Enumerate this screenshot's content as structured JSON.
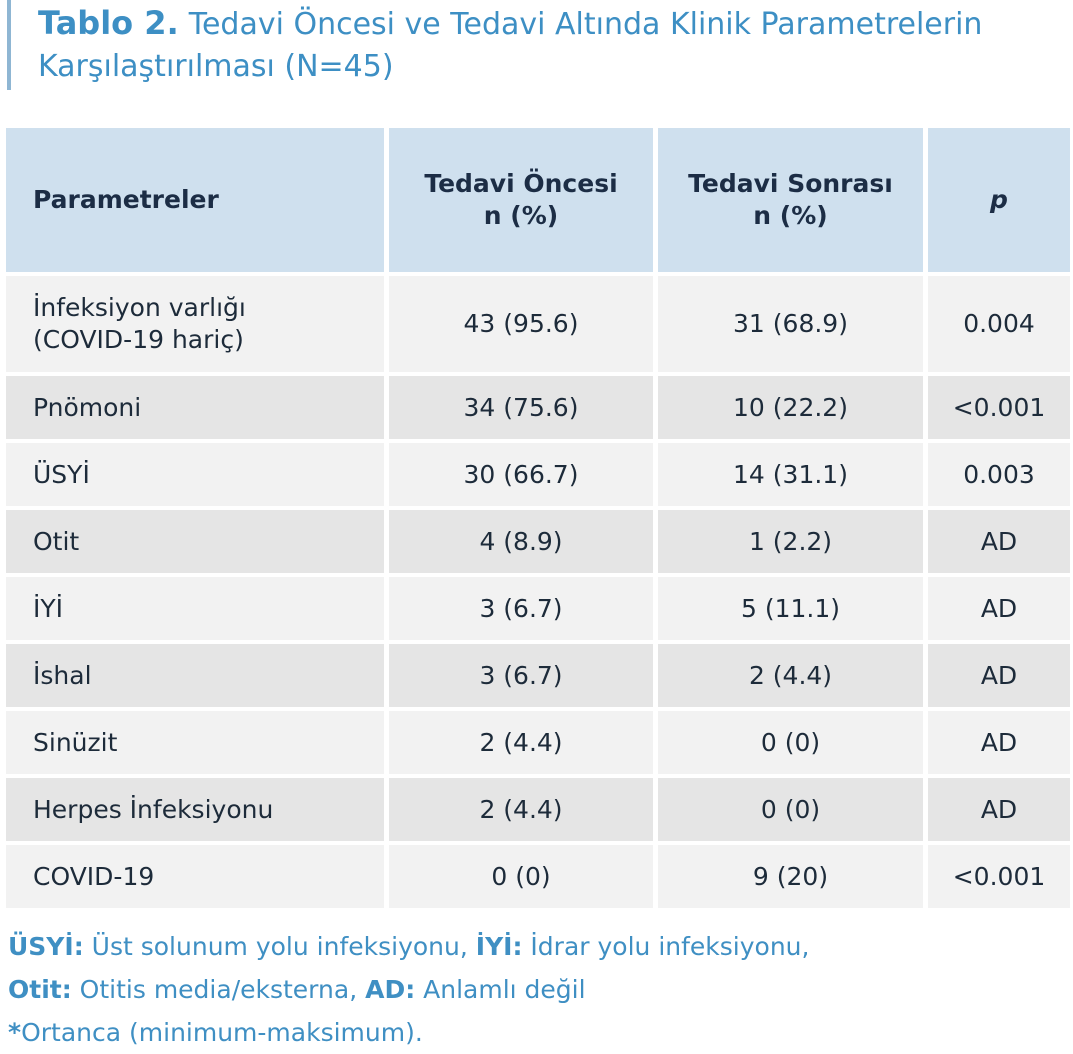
{
  "title": {
    "label": "Tablo 2.",
    "text": "Tedavi Öncesi ve Tedavi Altında Klinik Parametrelerin Karşılaştırılması (N=45)"
  },
  "table": {
    "header": [
      [
        "Parametreler"
      ],
      [
        "Tedavi Öncesi",
        "n (%)"
      ],
      [
        "Tedavi Sonrası",
        "n (%)"
      ],
      [
        "p"
      ]
    ],
    "rows": [
      [
        [
          "İnfeksiyon varlığı",
          "(COVID-19 hariç)"
        ],
        "43 (95.6)",
        "31 (68.9)",
        "0.004"
      ],
      [
        [
          "Pnömoni"
        ],
        "34 (75.6)",
        "10 (22.2)",
        "<0.001"
      ],
      [
        [
          "ÜSYİ"
        ],
        "30 (66.7)",
        "14 (31.1)",
        "0.003"
      ],
      [
        [
          "Otit"
        ],
        "4 (8.9)",
        "1 (2.2)",
        "AD"
      ],
      [
        [
          "İYİ"
        ],
        "3 (6.7)",
        "5 (11.1)",
        "AD"
      ],
      [
        [
          "İshal"
        ],
        "3 (6.7)",
        "2 (4.4)",
        "AD"
      ],
      [
        [
          "Sinüzit"
        ],
        "2 (4.4)",
        "0 (0)",
        "AD"
      ],
      [
        [
          "Herpes İnfeksiyonu"
        ],
        "2 (4.4)",
        "0 (0)",
        "AD"
      ],
      [
        [
          "COVID-19"
        ],
        "0 (0)",
        "9 (20)",
        "<0.001"
      ]
    ]
  },
  "footnotes": [
    [
      {
        "term": "ÜSYİ:",
        "text": " Üst solunum yolu infeksiyonu, "
      },
      {
        "term": "İYİ:",
        "text": " İdrar yolu infeksiyonu,"
      }
    ],
    [
      {
        "term": "Otit:",
        "text": " Otitis media/eksterna, "
      },
      {
        "term": "AD:",
        "text": " Anlamlı değil"
      }
    ],
    [
      {
        "term": "*",
        "text": "Ortanca (minimum-maksimum)."
      }
    ]
  ]
}
